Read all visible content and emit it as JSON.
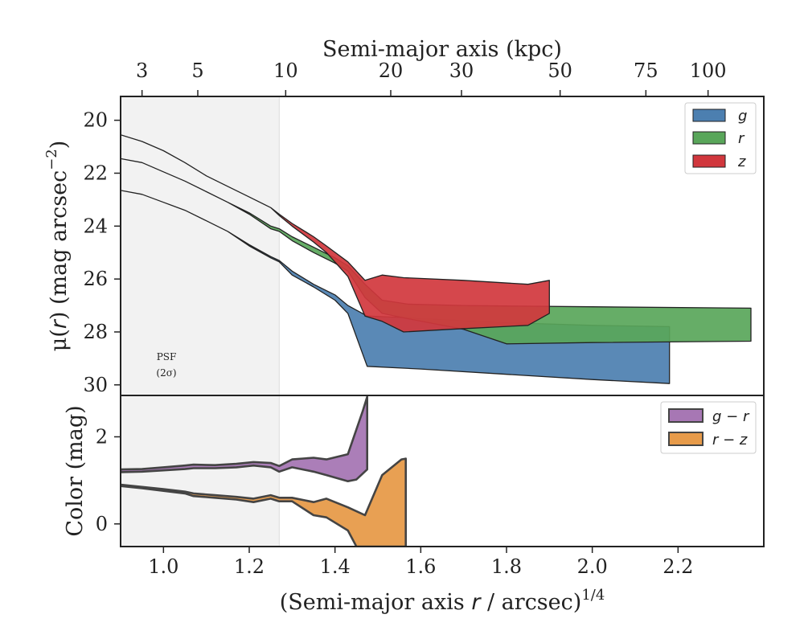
{
  "chart_data": {
    "type": "area",
    "top_axis": {
      "label": "Semi-major axis (kpc)",
      "ticks": [
        {
          "label": "3",
          "x": 0.95
        },
        {
          "label": "5",
          "x": 1.08
        },
        {
          "label": "10",
          "x": 1.285
        },
        {
          "label": "20",
          "x": 1.53
        },
        {
          "label": "30",
          "x": 1.695
        },
        {
          "label": "50",
          "x": 1.925
        },
        {
          "label": "75",
          "x": 2.125
        },
        {
          "label": "100",
          "x": 2.27
        }
      ]
    },
    "x_axis": {
      "label_main": "(Semi-major axis ",
      "label_var": "r",
      "label_unit": " / arcsec)",
      "label_sup": "1/4",
      "range": [
        0.9,
        2.4
      ],
      "ticks": [
        {
          "label": "1.0",
          "x": 1.0
        },
        {
          "label": "1.2",
          "x": 1.2
        },
        {
          "label": "1.4",
          "x": 1.4
        },
        {
          "label": "1.6",
          "x": 1.6
        },
        {
          "label": "1.8",
          "x": 1.8
        },
        {
          "label": "2.0",
          "x": 2.0
        },
        {
          "label": "2.2",
          "x": 2.2
        }
      ]
    },
    "psf": {
      "x_max": 1.27,
      "label_line1": "PSF",
      "label_line2": "(2σ)"
    },
    "profile_panel": {
      "y_label_pre": "μ(",
      "y_label_var": "r",
      "y_label_post": ") (mag arcsec",
      "y_label_sup": "−2",
      "y_label_end": ")",
      "y_range": [
        30.4,
        19.1
      ],
      "y_ticks": [
        {
          "label": "20",
          "v": 20
        },
        {
          "label": "22",
          "v": 22
        },
        {
          "label": "24",
          "v": 24
        },
        {
          "label": "26",
          "v": 26
        },
        {
          "label": "28",
          "v": 28
        },
        {
          "label": "30",
          "v": 30
        }
      ],
      "series": [
        {
          "name": "g",
          "color": "#4c7fb0",
          "upper": [
            [
              0.9,
              22.65
            ],
            [
              0.95,
              22.8
            ],
            [
              1.0,
              23.1
            ],
            [
              1.05,
              23.4
            ],
            [
              1.1,
              23.8
            ],
            [
              1.15,
              24.2
            ],
            [
              1.2,
              24.7
            ],
            [
              1.25,
              25.15
            ],
            [
              1.27,
              25.3
            ],
            [
              1.3,
              25.7
            ],
            [
              1.35,
              26.2
            ],
            [
              1.4,
              26.6
            ],
            [
              1.43,
              27.0
            ],
            [
              1.475,
              27.4
            ],
            [
              1.55,
              27.45
            ],
            [
              1.6,
              27.5
            ],
            [
              1.8,
              27.65
            ],
            [
              2.0,
              27.75
            ],
            [
              2.18,
              27.8
            ]
          ],
          "lower": [
            [
              0.9,
              22.65
            ],
            [
              0.95,
              22.8
            ],
            [
              1.0,
              23.1
            ],
            [
              1.05,
              23.4
            ],
            [
              1.1,
              23.8
            ],
            [
              1.15,
              24.2
            ],
            [
              1.2,
              24.75
            ],
            [
              1.25,
              25.2
            ],
            [
              1.27,
              25.35
            ],
            [
              1.3,
              25.85
            ],
            [
              1.35,
              26.3
            ],
            [
              1.4,
              26.8
            ],
            [
              1.43,
              27.3
            ],
            [
              1.475,
              29.3
            ],
            [
              1.6,
              29.4
            ],
            [
              1.8,
              29.6
            ],
            [
              2.0,
              29.8
            ],
            [
              2.18,
              29.95
            ]
          ]
        },
        {
          "name": "r",
          "color": "#59a65a",
          "upper": [
            [
              0.9,
              21.45
            ],
            [
              0.95,
              21.6
            ],
            [
              1.0,
              21.95
            ],
            [
              1.05,
              22.3
            ],
            [
              1.1,
              22.7
            ],
            [
              1.15,
              23.1
            ],
            [
              1.2,
              23.5
            ],
            [
              1.25,
              24.0
            ],
            [
              1.27,
              24.1
            ],
            [
              1.3,
              24.4
            ],
            [
              1.35,
              24.8
            ],
            [
              1.4,
              25.2
            ],
            [
              1.43,
              25.5
            ],
            [
              1.47,
              26.2
            ],
            [
              1.51,
              26.8
            ],
            [
              1.57,
              26.95
            ],
            [
              1.7,
              27.0
            ],
            [
              1.8,
              27.02
            ],
            [
              2.0,
              27.05
            ],
            [
              2.37,
              27.1
            ]
          ],
          "lower": [
            [
              0.9,
              21.45
            ],
            [
              0.95,
              21.6
            ],
            [
              1.0,
              21.95
            ],
            [
              1.05,
              22.3
            ],
            [
              1.1,
              22.7
            ],
            [
              1.15,
              23.1
            ],
            [
              1.2,
              23.55
            ],
            [
              1.25,
              24.1
            ],
            [
              1.27,
              24.2
            ],
            [
              1.3,
              24.55
            ],
            [
              1.35,
              25.0
            ],
            [
              1.4,
              25.4
            ],
            [
              1.43,
              25.7
            ],
            [
              1.47,
              26.7
            ],
            [
              1.51,
              27.3
            ],
            [
              1.57,
              27.5
            ],
            [
              1.7,
              27.9
            ],
            [
              1.8,
              28.45
            ],
            [
              2.0,
              28.4
            ],
            [
              2.37,
              28.35
            ]
          ]
        },
        {
          "name": "z",
          "color": "#d1373d",
          "upper": [
            [
              0.9,
              20.55
            ],
            [
              0.95,
              20.8
            ],
            [
              1.0,
              21.15
            ],
            [
              1.05,
              21.6
            ],
            [
              1.1,
              22.1
            ],
            [
              1.15,
              22.5
            ],
            [
              1.2,
              22.9
            ],
            [
              1.25,
              23.3
            ],
            [
              1.27,
              23.55
            ],
            [
              1.3,
              23.9
            ],
            [
              1.35,
              24.4
            ],
            [
              1.38,
              24.75
            ],
            [
              1.43,
              25.35
            ],
            [
              1.47,
              26.05
            ],
            [
              1.51,
              25.85
            ],
            [
              1.56,
              25.95
            ],
            [
              1.7,
              26.05
            ],
            [
              1.85,
              26.2
            ],
            [
              1.9,
              26.05
            ]
          ],
          "lower": [
            [
              0.9,
              20.55
            ],
            [
              0.95,
              20.8
            ],
            [
              1.0,
              21.15
            ],
            [
              1.05,
              21.6
            ],
            [
              1.1,
              22.1
            ],
            [
              1.15,
              22.5
            ],
            [
              1.2,
              22.9
            ],
            [
              1.25,
              23.3
            ],
            [
              1.27,
              23.6
            ],
            [
              1.3,
              24.0
            ],
            [
              1.35,
              24.6
            ],
            [
              1.38,
              25.0
            ],
            [
              1.43,
              25.9
            ],
            [
              1.47,
              27.4
            ],
            [
              1.51,
              27.6
            ],
            [
              1.56,
              28.0
            ],
            [
              1.67,
              27.9
            ],
            [
              1.85,
              27.75
            ],
            [
              1.9,
              27.3
            ]
          ]
        }
      ],
      "legend": {
        "position": "upper right",
        "entries": [
          "g",
          "r",
          "z"
        ]
      }
    },
    "color_panel": {
      "y_label": "Color (mag)",
      "y_range": [
        -0.52,
        2.95
      ],
      "y_ticks": [
        {
          "label": "0",
          "v": 0
        },
        {
          "label": "2",
          "v": 2
        }
      ],
      "series": [
        {
          "name": "g − r",
          "color": "#a777b4",
          "upper": [
            [
              0.9,
              1.25
            ],
            [
              0.95,
              1.26
            ],
            [
              1.0,
              1.3
            ],
            [
              1.05,
              1.34
            ],
            [
              1.07,
              1.36
            ],
            [
              1.12,
              1.35
            ],
            [
              1.17,
              1.38
            ],
            [
              1.21,
              1.42
            ],
            [
              1.25,
              1.4
            ],
            [
              1.27,
              1.33
            ],
            [
              1.3,
              1.48
            ],
            [
              1.35,
              1.52
            ],
            [
              1.38,
              1.48
            ],
            [
              1.43,
              1.6
            ],
            [
              1.465,
              2.6
            ],
            [
              1.475,
              2.92
            ]
          ],
          "lower": [
            [
              0.9,
              1.19
            ],
            [
              0.95,
              1.2
            ],
            [
              1.0,
              1.23
            ],
            [
              1.05,
              1.26
            ],
            [
              1.07,
              1.28
            ],
            [
              1.12,
              1.28
            ],
            [
              1.17,
              1.3
            ],
            [
              1.21,
              1.34
            ],
            [
              1.25,
              1.3
            ],
            [
              1.27,
              1.2
            ],
            [
              1.3,
              1.3
            ],
            [
              1.35,
              1.2
            ],
            [
              1.38,
              1.12
            ],
            [
              1.43,
              0.98
            ],
            [
              1.45,
              1.02
            ],
            [
              1.475,
              1.25
            ]
          ]
        },
        {
          "name": "r − z",
          "color": "#e79b4a",
          "upper": [
            [
              0.9,
              0.9
            ],
            [
              0.95,
              0.85
            ],
            [
              1.0,
              0.8
            ],
            [
              1.05,
              0.74
            ],
            [
              1.07,
              0.7
            ],
            [
              1.12,
              0.66
            ],
            [
              1.17,
              0.62
            ],
            [
              1.21,
              0.58
            ],
            [
              1.25,
              0.66
            ],
            [
              1.27,
              0.6
            ],
            [
              1.3,
              0.6
            ],
            [
              1.35,
              0.5
            ],
            [
              1.38,
              0.58
            ],
            [
              1.43,
              0.38
            ],
            [
              1.47,
              0.2
            ],
            [
              1.51,
              1.12
            ],
            [
              1.555,
              1.48
            ],
            [
              1.565,
              1.5
            ]
          ],
          "lower": [
            [
              0.9,
              0.87
            ],
            [
              0.95,
              0.82
            ],
            [
              1.0,
              0.76
            ],
            [
              1.05,
              0.7
            ],
            [
              1.07,
              0.64
            ],
            [
              1.12,
              0.6
            ],
            [
              1.17,
              0.56
            ],
            [
              1.21,
              0.5
            ],
            [
              1.25,
              0.58
            ],
            [
              1.27,
              0.52
            ],
            [
              1.3,
              0.52
            ],
            [
              1.35,
              0.2
            ],
            [
              1.38,
              0.15
            ],
            [
              1.43,
              -0.15
            ],
            [
              1.45,
              -0.52
            ],
            [
              1.565,
              -0.52
            ]
          ]
        }
      ],
      "legend": {
        "position": "upper right",
        "entries": [
          "g − r",
          "r − z"
        ]
      }
    }
  }
}
